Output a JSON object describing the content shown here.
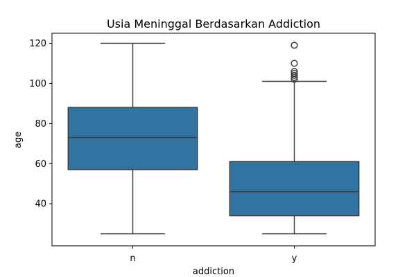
{
  "chart_data": {
    "type": "box",
    "title": "Usia Meninggal Berdasarkan Addiction",
    "xlabel": "addiction",
    "ylabel": "age",
    "categories": [
      "n",
      "y"
    ],
    "yticks": [
      40,
      60,
      80,
      100,
      120
    ],
    "ylim": [
      19,
      125
    ],
    "grid": false,
    "box_color": "#3274a1",
    "line_color": "#3d3d3d",
    "boxes": [
      {
        "category": "n",
        "whisker_low": 25,
        "q1": 57,
        "median": 73,
        "q3": 88,
        "whisker_high": 120,
        "outliers": []
      },
      {
        "category": "y",
        "whisker_low": 25,
        "q1": 34,
        "median": 46,
        "q3": 61,
        "whisker_high": 101,
        "outliers": [
          102,
          103,
          104,
          105,
          106,
          110,
          119
        ]
      }
    ]
  }
}
